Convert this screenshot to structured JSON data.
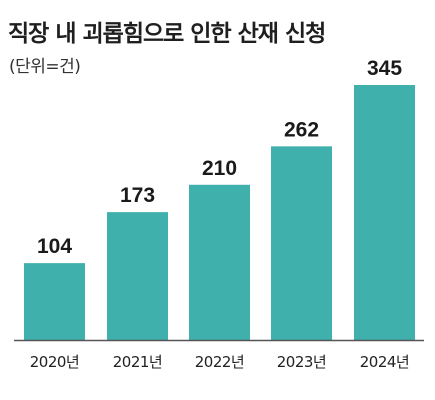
{
  "chart_data": {
    "type": "bar",
    "title": "직장 내 괴롭힘으로 인한 산재 신청",
    "subtitle": "(단위=건)",
    "categories": [
      "2020년",
      "2021년",
      "2022년",
      "2023년",
      "2024년"
    ],
    "values": [
      104,
      173,
      210,
      262,
      345
    ],
    "ylim": [
      0,
      345
    ],
    "grid": false,
    "legend": "none",
    "bar_color": "#3fb0ac",
    "axis_color": "#555555"
  }
}
